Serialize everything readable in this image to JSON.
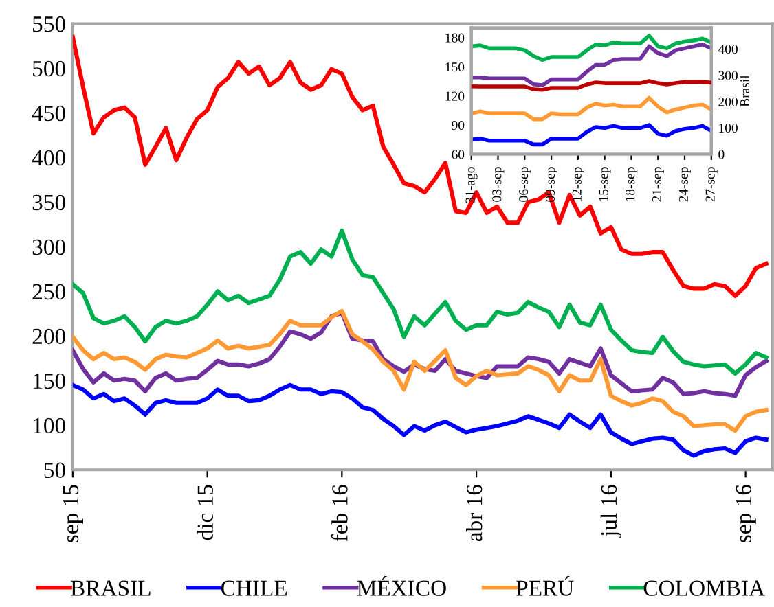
{
  "chart_data": [
    {
      "type": "line",
      "legend": "bottom",
      "grid": false,
      "ylim": [
        50,
        550
      ],
      "categories": [
        "sep 15",
        null,
        null,
        null,
        null,
        null,
        null,
        null,
        null,
        null,
        null,
        null,
        null,
        "dic 15",
        null,
        null,
        null,
        null,
        null,
        null,
        null,
        null,
        null,
        null,
        null,
        null,
        "feb 16",
        null,
        null,
        null,
        null,
        null,
        null,
        null,
        null,
        null,
        null,
        null,
        null,
        "abr 16",
        null,
        null,
        null,
        null,
        null,
        null,
        null,
        null,
        null,
        null,
        null,
        null,
        "jul 16",
        null,
        null,
        null,
        null,
        null,
        null,
        null,
        null,
        null,
        null,
        null,
        null,
        "sep 16",
        null,
        null
      ],
      "yticks": [
        50,
        100,
        150,
        200,
        250,
        300,
        350,
        400,
        450,
        500,
        550
      ],
      "series": [
        {
          "name": "BRASIL",
          "color": "#ff0000",
          "values": [
            535,
            479,
            427,
            445,
            453,
            456,
            445,
            392,
            412,
            433,
            397,
            422,
            443,
            453,
            479,
            489,
            507,
            494,
            502,
            481,
            489,
            507,
            484,
            476,
            481,
            499,
            494,
            468,
            453,
            458,
            412,
            392,
            371,
            368,
            361,
            376,
            394,
            340,
            338,
            361,
            338,
            345,
            327,
            327,
            350,
            353,
            361,
            327,
            358,
            335,
            345,
            315,
            322,
            297,
            292,
            292,
            294,
            294,
            274,
            256,
            253,
            253,
            258,
            256,
            245,
            256,
            276,
            281
          ]
        },
        {
          "name": "CHILE",
          "color": "#0000ff",
          "values": [
            145,
            140,
            130,
            135,
            127,
            130,
            122,
            112,
            125,
            128,
            125,
            125,
            125,
            130,
            140,
            133,
            133,
            127,
            128,
            133,
            140,
            145,
            140,
            140,
            135,
            138,
            137,
            130,
            120,
            117,
            107,
            99,
            89,
            99,
            94,
            100,
            104,
            98,
            92,
            95,
            97,
            99,
            102,
            105,
            110,
            106,
            102,
            97,
            112,
            104,
            97,
            112,
            92,
            85,
            79,
            82,
            85,
            86,
            84,
            72,
            66,
            71,
            73,
            74,
            69,
            82,
            86,
            84
          ]
        },
        {
          "name": "MÉXICO",
          "color": "#7030a0",
          "values": [
            184,
            163,
            148,
            158,
            150,
            152,
            150,
            138,
            153,
            158,
            150,
            152,
            153,
            162,
            172,
            168,
            168,
            166,
            169,
            174,
            188,
            205,
            202,
            197,
            204,
            222,
            226,
            197,
            195,
            194,
            174,
            166,
            160,
            168,
            163,
            161,
            174,
            161,
            158,
            155,
            153,
            166,
            166,
            166,
            176,
            174,
            171,
            158,
            174,
            170,
            166,
            186,
            156,
            147,
            138,
            139,
            140,
            153,
            148,
            135,
            136,
            138,
            136,
            135,
            133,
            156,
            165,
            172
          ]
        },
        {
          "name": "PERÚ",
          "color": "#ff9933",
          "values": [
            199,
            184,
            174,
            181,
            174,
            176,
            171,
            162,
            174,
            179,
            177,
            176,
            181,
            186,
            195,
            186,
            189,
            186,
            188,
            190,
            202,
            217,
            212,
            212,
            212,
            221,
            228,
            202,
            194,
            185,
            171,
            161,
            140,
            171,
            161,
            172,
            184,
            153,
            145,
            155,
            161,
            156,
            157,
            158,
            166,
            162,
            156,
            138,
            156,
            150,
            150,
            174,
            133,
            127,
            122,
            125,
            130,
            127,
            115,
            110,
            99,
            100,
            101,
            101,
            94,
            110,
            115,
            117
          ]
        },
        {
          "name": "COLOMBIA",
          "color": "#00b050",
          "values": [
            258,
            248,
            220,
            214,
            217,
            222,
            210,
            194,
            210,
            217,
            214,
            217,
            222,
            235,
            250,
            240,
            245,
            237,
            241,
            245,
            263,
            289,
            294,
            281,
            297,
            289,
            318,
            286,
            268,
            266,
            248,
            230,
            199,
            222,
            212,
            225,
            238,
            217,
            207,
            212,
            212,
            227,
            224,
            226,
            238,
            232,
            227,
            210,
            235,
            215,
            212,
            235,
            207,
            195,
            184,
            182,
            181,
            199,
            183,
            171,
            168,
            166,
            167,
            168,
            158,
            168,
            181,
            176
          ]
        }
      ]
    },
    {
      "type": "line",
      "legend": false,
      "grid": false,
      "ylim": [
        60,
        190
      ],
      "yticks": [
        60,
        90,
        120,
        150,
        180
      ],
      "y2lim": [
        0,
        480
      ],
      "y2ticks": [
        0,
        100,
        200,
        300,
        400
      ],
      "y2label": "Brasil",
      "categories": [
        "31-ago",
        null,
        null,
        "03-sep",
        null,
        null,
        "06-sep",
        null,
        null,
        "09-sep",
        null,
        null,
        "12-sep",
        null,
        null,
        "15-sep",
        null,
        null,
        "18-sep",
        null,
        null,
        "21-sep",
        null,
        null,
        "24-sep",
        null,
        null,
        "27-sep"
      ],
      "series": [
        {
          "color": "#00b050",
          "values": [
            171,
            172,
            169,
            169,
            169,
            169,
            167,
            161,
            157,
            160,
            160,
            160,
            160,
            167,
            173,
            172,
            175,
            174,
            174,
            174,
            182,
            171,
            169,
            174,
            176,
            177,
            179,
            175
          ]
        },
        {
          "color": "#7030a0",
          "values": [
            139,
            139,
            138,
            138,
            138,
            138,
            138,
            132,
            131,
            137,
            137,
            137,
            137,
            145,
            152,
            152,
            157,
            158,
            158,
            158,
            171,
            164,
            161,
            167,
            169,
            171,
            173,
            169
          ]
        },
        {
          "color": "#c00000",
          "axis": "y2",
          "values": [
            258,
            257,
            257,
            257,
            257,
            257,
            257,
            247,
            245,
            252,
            252,
            252,
            252,
            265,
            273,
            270,
            270,
            270,
            270,
            270,
            278,
            270,
            265,
            270,
            275,
            275,
            275,
            272
          ]
        },
        {
          "color": "#ff9933",
          "values": [
            102,
            104,
            102,
            102,
            102,
            102,
            102,
            96,
            96,
            102,
            101,
            101,
            101,
            108,
            112,
            110,
            111,
            109,
            109,
            109,
            118,
            109,
            103,
            106,
            108,
            110,
            111,
            106
          ]
        },
        {
          "color": "#0000ff",
          "values": [
            75,
            76,
            74,
            74,
            74,
            74,
            74,
            70,
            70,
            76,
            76,
            76,
            76,
            83,
            88,
            87,
            89,
            87,
            87,
            87,
            90,
            81,
            79,
            84,
            86,
            87,
            89,
            84
          ]
        }
      ]
    }
  ]
}
